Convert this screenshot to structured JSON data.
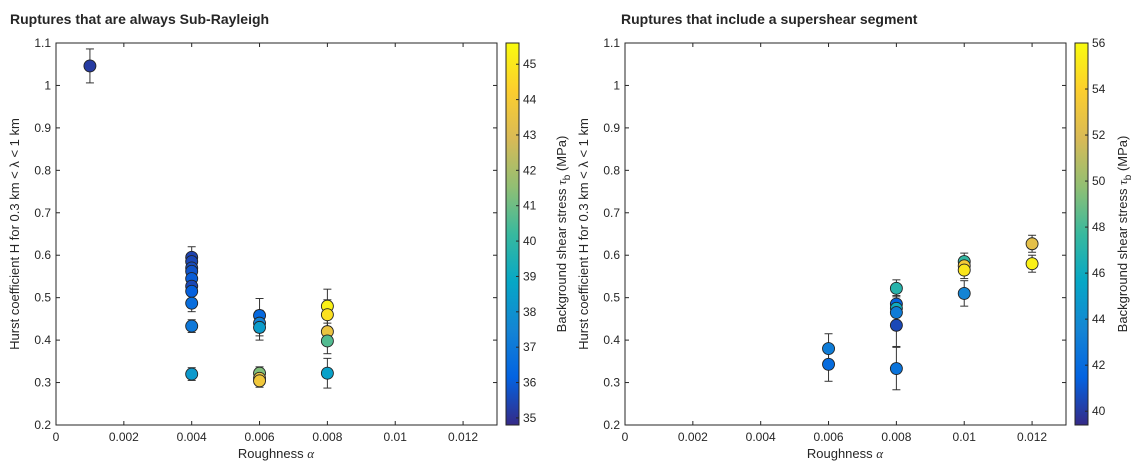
{
  "chart_data": [
    {
      "type": "scatter",
      "title": "Ruptures that are always Sub-Rayleigh",
      "xlabel": "Roughness",
      "xlabel_symbol": "α",
      "ylabel": "Hurst coefficient H for 0.3 km < λ < 1 km",
      "xlim": [
        0,
        0.013
      ],
      "ylim": [
        0.2,
        1.1
      ],
      "xticks": [
        "0",
        "0.002",
        "0.004",
        "0.006",
        "0.008",
        "0.01",
        "0.012"
      ],
      "yticks": [
        "0.2",
        "0.3",
        "0.4",
        "0.5",
        "0.6",
        "0.7",
        "0.8",
        "0.9",
        "1",
        "1.1"
      ],
      "grid": false,
      "colorbar": {
        "label": "Background shear stress τ_b (MPa)",
        "label_main": "Background shear stress ",
        "label_symbol": "τ",
        "label_sub": "b",
        "label_unit": " (MPa)",
        "range": [
          34.8,
          45.6
        ],
        "ticks": [
          "35",
          "36",
          "37",
          "38",
          "39",
          "40",
          "41",
          "42",
          "43",
          "44",
          "45"
        ],
        "colormap": "parula"
      },
      "points": [
        {
          "x": 0.001,
          "y": 1.046,
          "err": 0.04,
          "c": 35.2
        },
        {
          "x": 0.004,
          "y": 0.595,
          "err": 0.025,
          "c": 35.4
        },
        {
          "x": 0.004,
          "y": 0.585,
          "err": 0.02,
          "c": 35.5
        },
        {
          "x": 0.004,
          "y": 0.57,
          "err": 0.02,
          "c": 35.6
        },
        {
          "x": 0.004,
          "y": 0.562,
          "err": 0.02,
          "c": 35.8
        },
        {
          "x": 0.004,
          "y": 0.545,
          "err": 0.02,
          "c": 36.0
        },
        {
          "x": 0.004,
          "y": 0.527,
          "err": 0.02,
          "c": 35.5
        },
        {
          "x": 0.004,
          "y": 0.515,
          "err": 0.02,
          "c": 36.1
        },
        {
          "x": 0.004,
          "y": 0.487,
          "err": 0.02,
          "c": 36.6
        },
        {
          "x": 0.004,
          "y": 0.433,
          "err": 0.015,
          "c": 37.0
        },
        {
          "x": 0.004,
          "y": 0.32,
          "err": 0.015,
          "c": 38.3
        },
        {
          "x": 0.006,
          "y": 0.458,
          "err": 0.04,
          "c": 36.4
        },
        {
          "x": 0.006,
          "y": 0.44,
          "err": 0.03,
          "c": 37.4
        },
        {
          "x": 0.006,
          "y": 0.43,
          "err": 0.03,
          "c": 38.4
        },
        {
          "x": 0.006,
          "y": 0.322,
          "err": 0.015,
          "c": 41.3
        },
        {
          "x": 0.006,
          "y": 0.31,
          "err": 0.015,
          "c": 43.5
        },
        {
          "x": 0.006,
          "y": 0.304,
          "err": 0.015,
          "c": 43.8
        },
        {
          "x": 0.008,
          "y": 0.48,
          "err": 0.04,
          "c": 45.3
        },
        {
          "x": 0.008,
          "y": 0.46,
          "err": 0.035,
          "c": 44.8
        },
        {
          "x": 0.008,
          "y": 0.42,
          "err": 0.03,
          "c": 43.6
        },
        {
          "x": 0.008,
          "y": 0.398,
          "err": 0.03,
          "c": 40.6
        },
        {
          "x": 0.008,
          "y": 0.322,
          "err": 0.035,
          "c": 38.6
        }
      ]
    },
    {
      "type": "scatter",
      "title": "Ruptures that include a supershear segment",
      "xlabel": "Roughness",
      "xlabel_symbol": "α",
      "ylabel": "Hurst coefficient H for 0.3 km < λ < 1 km",
      "xlim": [
        0,
        0.013
      ],
      "ylim": [
        0.2,
        1.1
      ],
      "xticks": [
        "0",
        "0.002",
        "0.004",
        "0.006",
        "0.008",
        "0.01",
        "0.012"
      ],
      "yticks": [
        "0.2",
        "0.3",
        "0.4",
        "0.5",
        "0.6",
        "0.7",
        "0.8",
        "0.9",
        "1",
        "1.1"
      ],
      "grid": false,
      "colorbar": {
        "label": "Background shear stress τ_b (MPa)",
        "label_main": "Background shear stress ",
        "label_symbol": "τ",
        "label_sub": "b",
        "label_unit": " (MPa)",
        "range": [
          39.4,
          56
        ],
        "ticks": [
          "40",
          "42",
          "44",
          "46",
          "48",
          "50",
          "52",
          "54",
          "56"
        ],
        "colormap": "parula"
      },
      "points": [
        {
          "x": 0.006,
          "y": 0.38,
          "err": 0.035,
          "c": 43.0
        },
        {
          "x": 0.006,
          "y": 0.343,
          "err": 0.04,
          "c": 42.0
        },
        {
          "x": 0.008,
          "y": 0.522,
          "err": 0.02,
          "c": 47.0
        },
        {
          "x": 0.008,
          "y": 0.485,
          "err": 0.02,
          "c": 41.5
        },
        {
          "x": 0.008,
          "y": 0.475,
          "err": 0.02,
          "c": 46.0
        },
        {
          "x": 0.008,
          "y": 0.465,
          "err": 0.02,
          "c": 43.0
        },
        {
          "x": 0.008,
          "y": 0.435,
          "err": 0.05,
          "c": 40.5
        },
        {
          "x": 0.008,
          "y": 0.333,
          "err": 0.05,
          "c": 42.5
        },
        {
          "x": 0.01,
          "y": 0.585,
          "err": 0.02,
          "c": 47.5
        },
        {
          "x": 0.01,
          "y": 0.575,
          "err": 0.02,
          "c": 53.5
        },
        {
          "x": 0.01,
          "y": 0.565,
          "err": 0.02,
          "c": 55.0
        },
        {
          "x": 0.01,
          "y": 0.51,
          "err": 0.03,
          "c": 43.5
        },
        {
          "x": 0.012,
          "y": 0.627,
          "err": 0.02,
          "c": 52.5
        },
        {
          "x": 0.012,
          "y": 0.58,
          "err": 0.02,
          "c": 55.5
        }
      ]
    }
  ]
}
